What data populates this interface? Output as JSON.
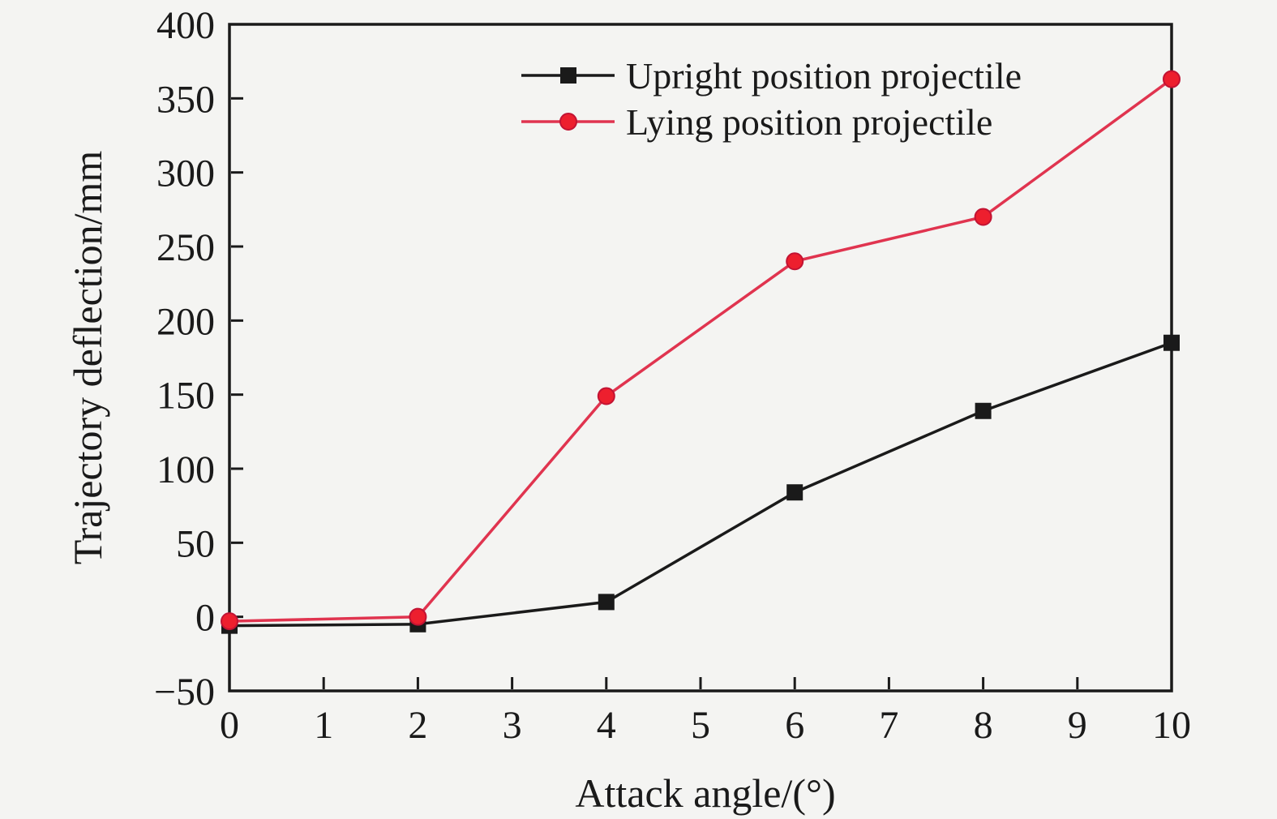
{
  "figure": {
    "background": "#f4f4f2"
  },
  "chart_data": {
    "type": "line",
    "title": "",
    "xlabel": "Attack angle/(°)",
    "ylabel": "Trajectory deflection/mm",
    "xlim": [
      0,
      10
    ],
    "ylim": [
      -50,
      400
    ],
    "x_ticks": [
      0,
      1,
      2,
      3,
      4,
      5,
      6,
      7,
      8,
      9,
      10
    ],
    "y_ticks": [
      -50,
      0,
      50,
      100,
      150,
      200,
      250,
      300,
      350,
      400
    ],
    "grid": false,
    "legend_position": "upper-center-inside",
    "x": [
      0,
      2,
      4,
      6,
      8,
      10
    ],
    "series": [
      {
        "name": "Upright position projectile",
        "marker": "square",
        "color": "#1a1a1a",
        "values": [
          -6,
          -5,
          10,
          84,
          139,
          185
        ]
      },
      {
        "name": "Lying position projectile",
        "marker": "circle",
        "color": "#e0344f",
        "marker_color": "#ed1f2e",
        "marker_edge": "#c21333",
        "values": [
          -3,
          0,
          149,
          240,
          270,
          363
        ]
      }
    ]
  }
}
